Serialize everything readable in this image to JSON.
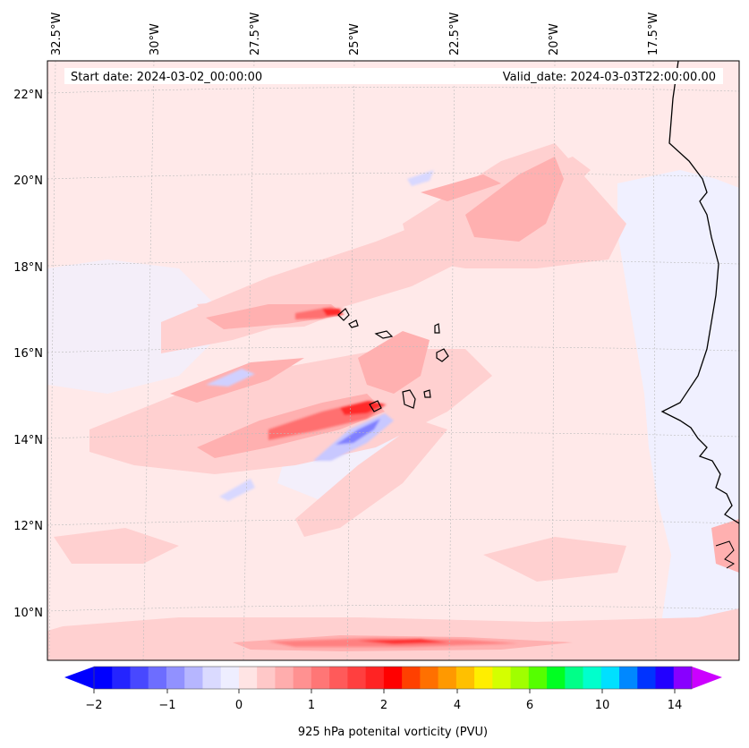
{
  "header": {
    "start_date": "Start date: 2024-03-02_00:00:00",
    "valid_date": "Valid_date: 2024-03-03T22:00:00.00"
  },
  "map": {
    "lon_labels": [
      "32.5°W",
      "30°W",
      "27.5°W",
      "25°W",
      "22.5°W",
      "20°W",
      "17.5°W"
    ],
    "lat_labels": [
      "22°N",
      "20°N",
      "18°N",
      "16°N",
      "14°N",
      "12°N",
      "10°N"
    ],
    "background_color": "#ffe9e9",
    "coastline_color": "#000000",
    "gridline_color": "#bbbbbb"
  },
  "colorbar": {
    "label": "925 hPa potenital vorticity (PVU)",
    "tick_labels": [
      "−2",
      "−1",
      "0",
      "1",
      "2",
      "4",
      "6",
      "10",
      "14"
    ],
    "colors": [
      "#0000ff",
      "#2424ff",
      "#4848ff",
      "#6d6dff",
      "#9191ff",
      "#b6b6ff",
      "#dadaff",
      "#eeeeff",
      "#ffe4e4",
      "#ffc8c8",
      "#ffadad",
      "#ff9191",
      "#ff7676",
      "#ff5a5a",
      "#ff3f3f",
      "#ff2323",
      "#ff0000",
      "#ff4000",
      "#ff7000",
      "#ff9900",
      "#ffc000",
      "#ffee00",
      "#d4ff00",
      "#a0ff00",
      "#55ff00",
      "#00ff22",
      "#00ff88",
      "#00ffcc",
      "#00e0ff",
      "#0088ff",
      "#0033ff",
      "#2200ff",
      "#8800ff"
    ],
    "extend_low_color": "#0000ff",
    "extend_high_color": "#cc00ff"
  }
}
